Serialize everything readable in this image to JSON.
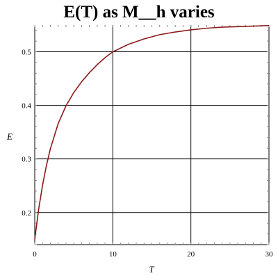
{
  "chart_data": {
    "type": "line",
    "title": "E(T) as M__h varies",
    "xlabel": "T",
    "ylabel": "E",
    "xlim": [
      0,
      30
    ],
    "ylim": [
      0.14,
      0.55
    ],
    "x_ticks": [
      0,
      10,
      20,
      30
    ],
    "y_ticks": [
      0.2,
      0.3,
      0.4,
      0.5
    ],
    "x_tick_labels": [
      "0",
      "10",
      "20",
      "30"
    ],
    "y_tick_labels": [
      "0.2",
      "0.3",
      "0.4",
      "0.5"
    ],
    "grid": true,
    "legend": "none",
    "line_color": "#8b1a1a",
    "series": [
      {
        "x": [
          0,
          0.5,
          1,
          1.5,
          2,
          3,
          4,
          5,
          6,
          7,
          8,
          9,
          10,
          12,
          14,
          16,
          18,
          20,
          22,
          24,
          26,
          28,
          30
        ],
        "values": [
          0.15,
          0.206,
          0.251,
          0.288,
          0.319,
          0.366,
          0.399,
          0.424,
          0.444,
          0.461,
          0.476,
          0.489,
          0.5,
          0.514,
          0.524,
          0.532,
          0.537,
          0.541,
          0.544,
          0.546,
          0.547,
          0.548,
          0.549
        ]
      }
    ]
  }
}
